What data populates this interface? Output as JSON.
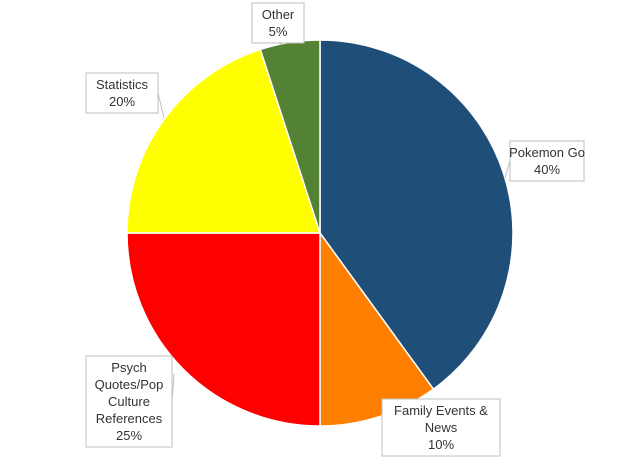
{
  "chart_data": {
    "type": "pie",
    "title": "",
    "start_angle_deg": 0,
    "direction": "clockwise",
    "slices": [
      {
        "label_lines": [
          "Pokemon Go"
        ],
        "percent_label": "40%",
        "value": 40,
        "color": "#1f4e79"
      },
      {
        "label_lines": [
          "Family Events &",
          "News"
        ],
        "percent_label": "10%",
        "value": 10,
        "color": "#ff8000"
      },
      {
        "label_lines": [
          "Psych",
          "Quotes/Pop",
          "Culture",
          "References"
        ],
        "percent_label": "25%",
        "value": 25,
        "color": "#ff0000"
      },
      {
        "label_lines": [
          "Statistics"
        ],
        "percent_label": "20%",
        "value": 20,
        "color": "#ffff00"
      },
      {
        "label_lines": [
          "Other"
        ],
        "percent_label": "5%",
        "value": 5,
        "color": "#548235"
      }
    ]
  }
}
